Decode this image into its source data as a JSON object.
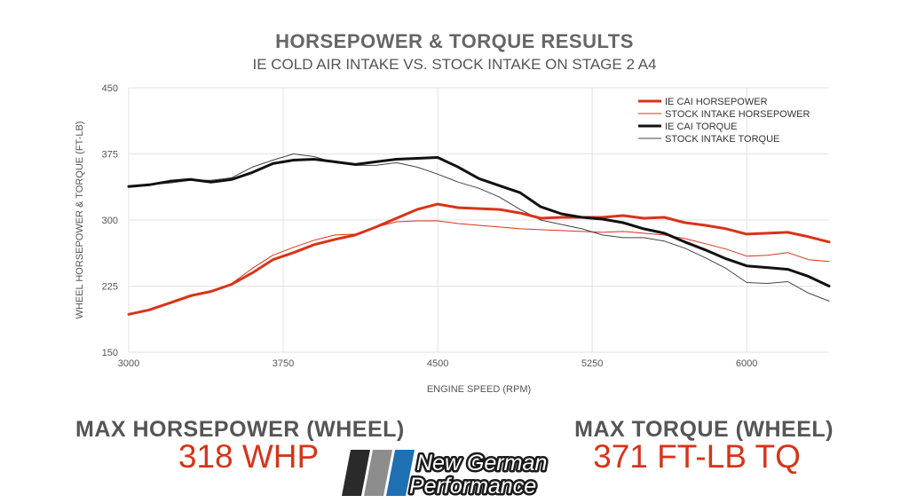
{
  "header": {
    "title": "HORSEPOWER & TORQUE RESULTS",
    "subtitle": "IE COLD AIR INTAKE VS. STOCK INTAKE ON STAGE 2 A4"
  },
  "chart_data": {
    "type": "line",
    "title": "HORSEPOWER & TORQUE RESULTS",
    "subtitle": "IE COLD AIR INTAKE VS. STOCK INTAKE ON STAGE 2 A4",
    "xlabel": "ENGINE SPEED (RPM)",
    "ylabel": "WHEEL HORSEPOWER & TORQUE (FT-LB)",
    "xlim": [
      3000,
      6400
    ],
    "ylim": [
      150,
      450
    ],
    "xticks": [
      3000,
      3750,
      4500,
      5250,
      6000
    ],
    "yticks": [
      150,
      225,
      300,
      375,
      450
    ],
    "grid": true,
    "legend_position": "top-right",
    "x": [
      3000,
      3100,
      3200,
      3300,
      3400,
      3500,
      3600,
      3700,
      3800,
      3900,
      4000,
      4100,
      4200,
      4300,
      4400,
      4500,
      4600,
      4700,
      4800,
      4900,
      5000,
      5100,
      5200,
      5300,
      5400,
      5500,
      5600,
      5700,
      5800,
      5900,
      6000,
      6100,
      6200,
      6300,
      6400
    ],
    "series": [
      {
        "name": "IE CAI HORSEPOWER",
        "color": "#d93318",
        "width": 3,
        "values": [
          193,
          198,
          206,
          214,
          219,
          227,
          240,
          255,
          263,
          272,
          278,
          283,
          292,
          302,
          312,
          318,
          314,
          313,
          312,
          308,
          302,
          303,
          303,
          303,
          305,
          302,
          303,
          297,
          294,
          290,
          284,
          285,
          286,
          281,
          275
        ]
      },
      {
        "name": "STOCK INTAKE HORSEPOWER",
        "color": "#d93318",
        "width": 1,
        "values": [
          193,
          198,
          205,
          213,
          219,
          228,
          245,
          260,
          269,
          277,
          283,
          284,
          292,
          298,
          299,
          299,
          296,
          294,
          292,
          290,
          289,
          288,
          287,
          286,
          287,
          285,
          283,
          279,
          273,
          267,
          259,
          260,
          263,
          255,
          253
        ]
      },
      {
        "name": "IE CAI TORQUE",
        "color": "#111111",
        "width": 3,
        "values": [
          338,
          340,
          344,
          346,
          343,
          346,
          354,
          364,
          368,
          369,
          366,
          363,
          366,
          369,
          370,
          371,
          360,
          347,
          339,
          331,
          315,
          307,
          303,
          301,
          297,
          290,
          285,
          275,
          266,
          256,
          248,
          246,
          244,
          236,
          225
        ]
      },
      {
        "name": "STOCK INTAKE TORQUE",
        "color": "#444444",
        "width": 1,
        "values": [
          338,
          340,
          342,
          345,
          345,
          348,
          360,
          368,
          375,
          372,
          365,
          362,
          362,
          365,
          360,
          352,
          343,
          336,
          326,
          312,
          300,
          295,
          290,
          283,
          280,
          280,
          276,
          268,
          257,
          245,
          229,
          228,
          230,
          217,
          208
        ]
      }
    ]
  },
  "stats": {
    "hp_label": "MAX HORSEPOWER (WHEEL)",
    "hp_value": "318 WHP",
    "tq_label": "MAX TORQUE (WHEEL)",
    "tq_value": "371 FT-LB TQ"
  },
  "brand": {
    "line1": "New German",
    "line2": "Performance",
    "stripe_colors": [
      "#2a2a2a",
      "#8d8d8d",
      "#1f6fb3"
    ]
  }
}
